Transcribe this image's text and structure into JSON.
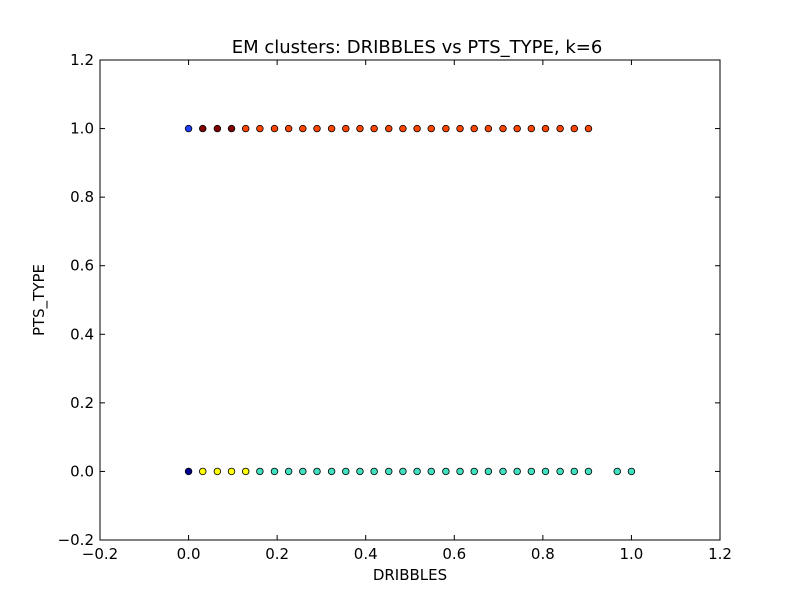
{
  "chart_data": {
    "type": "scatter",
    "title": "EM clusters: DRIBBLES vs PTS_TYPE, k=6",
    "xlabel": "DRIBBLES",
    "ylabel": "PTS_TYPE",
    "xlim": [
      -0.2,
      1.2
    ],
    "ylim": [
      -0.2,
      1.2
    ],
    "xticks": [
      -0.2,
      0.0,
      0.2,
      0.4,
      0.6,
      0.8,
      1.0,
      1.2
    ],
    "yticks": [
      -0.2,
      0.0,
      0.2,
      0.4,
      0.6,
      0.8,
      1.0,
      1.2
    ],
    "xtick_labels": [
      "−0.2",
      "0.0",
      "0.2",
      "0.4",
      "0.6",
      "0.8",
      "1.0",
      "1.2"
    ],
    "ytick_labels": [
      "−0.2",
      "0.0",
      "0.2",
      "0.4",
      "0.6",
      "0.8",
      "1.0",
      "1.2"
    ],
    "grid": false,
    "legend": "none",
    "series": [
      {
        "color": "#00008f",
        "points": [
          [
            0.0,
            0.0
          ]
        ]
      },
      {
        "color": "#1f3fff",
        "points": [
          [
            0.0,
            1.0
          ]
        ]
      },
      {
        "color": "#ffff00",
        "points": [
          [
            0.032,
            0.0
          ],
          [
            0.065,
            0.0
          ],
          [
            0.097,
            0.0
          ],
          [
            0.129,
            0.0
          ]
        ]
      },
      {
        "color": "#40e0c0",
        "points": [
          [
            0.161,
            0.0
          ],
          [
            0.194,
            0.0
          ],
          [
            0.226,
            0.0
          ],
          [
            0.258,
            0.0
          ],
          [
            0.29,
            0.0
          ],
          [
            0.323,
            0.0
          ],
          [
            0.355,
            0.0
          ],
          [
            0.387,
            0.0
          ],
          [
            0.419,
            0.0
          ],
          [
            0.452,
            0.0
          ],
          [
            0.484,
            0.0
          ],
          [
            0.516,
            0.0
          ],
          [
            0.548,
            0.0
          ],
          [
            0.581,
            0.0
          ],
          [
            0.613,
            0.0
          ],
          [
            0.645,
            0.0
          ],
          [
            0.677,
            0.0
          ],
          [
            0.71,
            0.0
          ],
          [
            0.742,
            0.0
          ],
          [
            0.774,
            0.0
          ],
          [
            0.806,
            0.0
          ],
          [
            0.839,
            0.0
          ],
          [
            0.871,
            0.0
          ],
          [
            0.903,
            0.0
          ],
          [
            0.968,
            0.0
          ],
          [
            1.0,
            0.0
          ]
        ]
      },
      {
        "color": "#800000",
        "points": [
          [
            0.032,
            1.0
          ],
          [
            0.065,
            1.0
          ],
          [
            0.097,
            1.0
          ]
        ]
      },
      {
        "color": "#ff4500",
        "points": [
          [
            0.129,
            1.0
          ],
          [
            0.161,
            1.0
          ],
          [
            0.194,
            1.0
          ],
          [
            0.226,
            1.0
          ],
          [
            0.258,
            1.0
          ],
          [
            0.29,
            1.0
          ],
          [
            0.323,
            1.0
          ],
          [
            0.355,
            1.0
          ],
          [
            0.387,
            1.0
          ],
          [
            0.419,
            1.0
          ],
          [
            0.452,
            1.0
          ],
          [
            0.484,
            1.0
          ],
          [
            0.516,
            1.0
          ],
          [
            0.548,
            1.0
          ],
          [
            0.581,
            1.0
          ],
          [
            0.613,
            1.0
          ],
          [
            0.645,
            1.0
          ],
          [
            0.677,
            1.0
          ],
          [
            0.71,
            1.0
          ],
          [
            0.742,
            1.0
          ],
          [
            0.774,
            1.0
          ],
          [
            0.806,
            1.0
          ],
          [
            0.839,
            1.0
          ],
          [
            0.871,
            1.0
          ],
          [
            0.903,
            1.0
          ]
        ]
      }
    ]
  }
}
